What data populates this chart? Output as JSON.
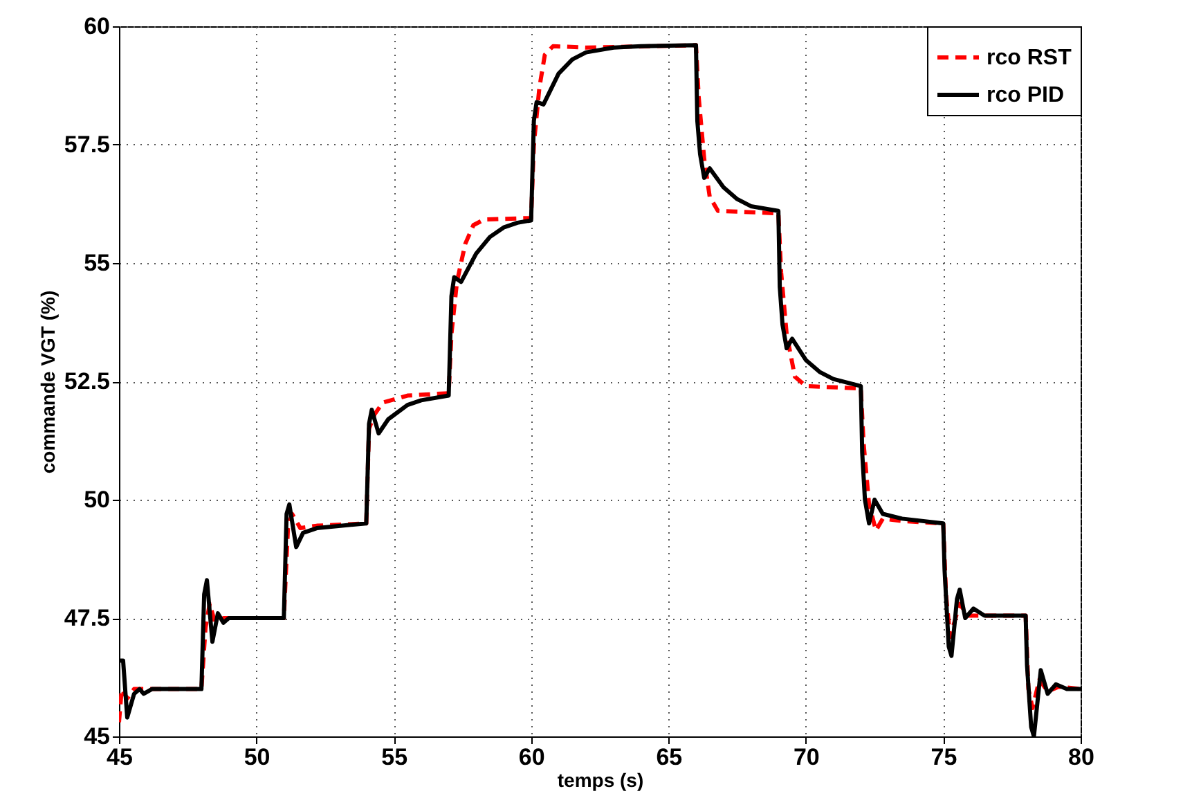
{
  "chart_data": {
    "type": "line",
    "xlabel": "temps (s)",
    "ylabel": "commande VGT (%)",
    "xlim": [
      45,
      80
    ],
    "ylim": [
      45,
      60
    ],
    "xticks": [
      45,
      50,
      55,
      60,
      65,
      70,
      75,
      80
    ],
    "yticks": [
      45,
      47.5,
      50,
      52.5,
      55,
      57.5,
      60
    ],
    "grid": true,
    "legend": "top right",
    "marker": "none",
    "series": [
      {
        "name": "rco RST",
        "color": "#ff0000",
        "line_style": "dashed",
        "x": [
          45,
          45.1,
          45.3,
          45.55,
          46,
          48,
          48.15,
          48.3,
          48.5,
          48.8,
          51,
          51.15,
          51.3,
          51.6,
          52.2,
          54,
          54.1,
          54.3,
          54.6,
          55.5,
          57,
          57.1,
          57.3,
          57.6,
          57.9,
          58.3,
          60,
          60.1,
          60.3,
          60.5,
          60.8,
          62,
          66,
          66.1,
          66.3,
          66.5,
          66.8,
          69,
          69.1,
          69.3,
          69.6,
          70,
          72,
          72.1,
          72.3,
          72.55,
          72.8,
          73.5,
          75,
          75.1,
          75.25,
          75.45,
          75.6,
          75.9,
          78,
          78.1,
          78.25,
          78.5,
          78.8,
          79.2,
          80
        ],
        "values": [
          45.3,
          46.0,
          45.8,
          46.0,
          46.0,
          46.0,
          47.3,
          47.8,
          47.4,
          47.5,
          47.5,
          49.4,
          49.7,
          49.4,
          49.45,
          49.5,
          51.5,
          51.8,
          52.05,
          52.2,
          52.25,
          53.5,
          54.6,
          55.4,
          55.8,
          55.92,
          55.95,
          57.5,
          58.7,
          59.4,
          59.58,
          59.55,
          59.6,
          58.5,
          57.2,
          56.4,
          56.1,
          56.05,
          54.8,
          53.5,
          52.6,
          52.4,
          52.35,
          51.2,
          49.9,
          49.35,
          49.6,
          49.55,
          49.5,
          48.0,
          47.1,
          47.5,
          47.8,
          47.55,
          47.55,
          46.0,
          45.6,
          46.2,
          45.95,
          46.05,
          46.0
        ]
      },
      {
        "name": "rco PID",
        "color": "#000000",
        "line_style": "solid",
        "x": [
          45,
          45.15,
          45.3,
          45.55,
          45.75,
          45.9,
          46.2,
          48,
          48.1,
          48.2,
          48.4,
          48.6,
          48.8,
          49,
          51,
          51.1,
          51.2,
          51.45,
          51.7,
          52.2,
          54,
          54.1,
          54.2,
          54.45,
          54.8,
          55.5,
          56,
          57,
          57.1,
          57.2,
          57.45,
          58,
          58.5,
          59,
          59.5,
          60,
          60.1,
          60.2,
          60.45,
          61,
          61.5,
          62,
          63,
          64,
          66,
          66.05,
          66.15,
          66.3,
          66.5,
          67,
          67.5,
          68,
          69,
          69.05,
          69.15,
          69.3,
          69.5,
          70,
          70.5,
          71,
          72,
          72.05,
          72.15,
          72.3,
          72.5,
          72.8,
          73.5,
          75,
          75.05,
          75.2,
          75.3,
          75.5,
          75.6,
          75.8,
          76.1,
          76.5,
          78,
          78.05,
          78.2,
          78.3,
          78.55,
          78.8,
          79.1,
          79.5,
          80
        ],
        "values": [
          46.6,
          46.6,
          45.4,
          45.9,
          46.0,
          45.9,
          46.0,
          46.0,
          48.0,
          48.3,
          47.0,
          47.6,
          47.4,
          47.5,
          47.5,
          49.7,
          49.9,
          49.0,
          49.3,
          49.4,
          49.5,
          51.6,
          51.9,
          51.4,
          51.7,
          52.0,
          52.1,
          52.2,
          54.3,
          54.7,
          54.6,
          55.2,
          55.55,
          55.75,
          55.85,
          55.9,
          58.0,
          58.4,
          58.35,
          59.0,
          59.3,
          59.45,
          59.55,
          59.58,
          59.6,
          58.0,
          57.3,
          56.8,
          57.0,
          56.6,
          56.35,
          56.2,
          56.1,
          54.5,
          53.7,
          53.2,
          53.4,
          52.95,
          52.7,
          52.55,
          52.4,
          51.0,
          50.0,
          49.5,
          50.0,
          49.7,
          49.6,
          49.5,
          48.5,
          46.9,
          46.7,
          47.9,
          48.1,
          47.5,
          47.7,
          47.55,
          47.55,
          46.5,
          45.2,
          45.0,
          46.4,
          45.9,
          46.1,
          46.0,
          46.0
        ]
      }
    ]
  }
}
